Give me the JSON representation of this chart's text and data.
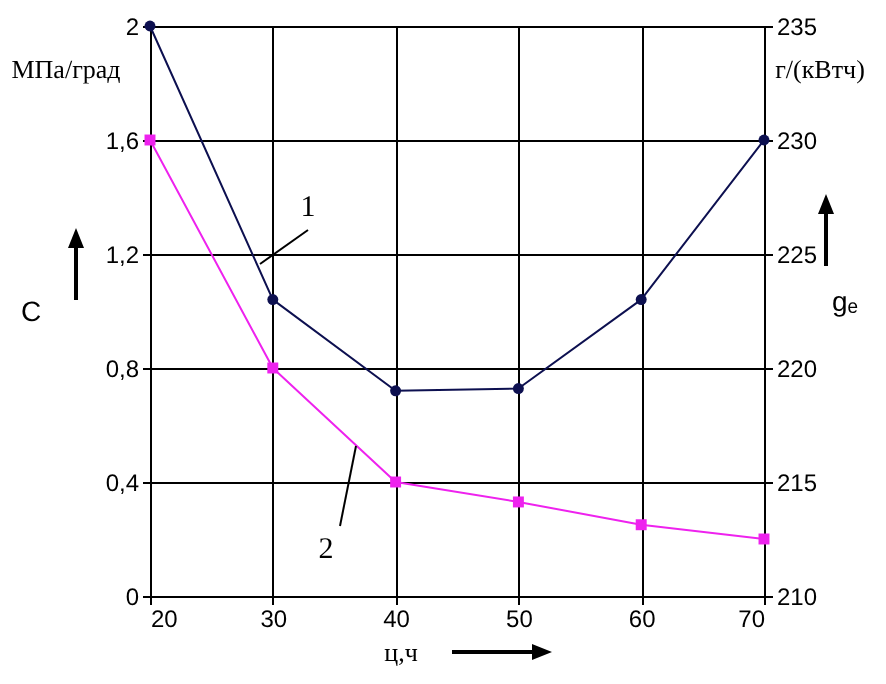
{
  "chart_data": {
    "type": "line",
    "xlabel": "ц,ч",
    "ylabel": "C",
    "y2label": "gₑ",
    "annotations": [
      "МПа/град",
      "г/(кВтч)",
      "1",
      "2"
    ],
    "x": [
      20,
      30,
      40,
      50,
      60,
      70
    ],
    "series": [
      {
        "color": "#0d1050",
        "marker": "circle",
        "axis": "y2",
        "values": [
          235,
          223,
          219,
          219.1,
          223,
          230
        ]
      },
      {
        "color": "#ee22ee",
        "marker": "square",
        "values": [
          1.6,
          0.8,
          0.4,
          0.33,
          0.25,
          0.2
        ]
      }
    ],
    "xlim": [
      20,
      70
    ],
    "xticks": [
      20,
      30,
      40,
      50,
      60,
      70
    ],
    "ylim": [
      0,
      2
    ],
    "yticks": [
      {
        "value": 0,
        "label": "0"
      },
      {
        "value": 0.4,
        "label": "0,4"
      },
      {
        "value": 0.8,
        "label": "0,8"
      },
      {
        "value": 1.2,
        "label": "1,2"
      },
      {
        "value": 1.6,
        "label": "1,6"
      },
      {
        "value": 2,
        "label": "2"
      }
    ],
    "y2lim": [
      210,
      235
    ],
    "y2ticks": [
      210,
      215,
      220,
      225,
      230,
      235
    ],
    "grid": true,
    "line_style": "solid"
  }
}
